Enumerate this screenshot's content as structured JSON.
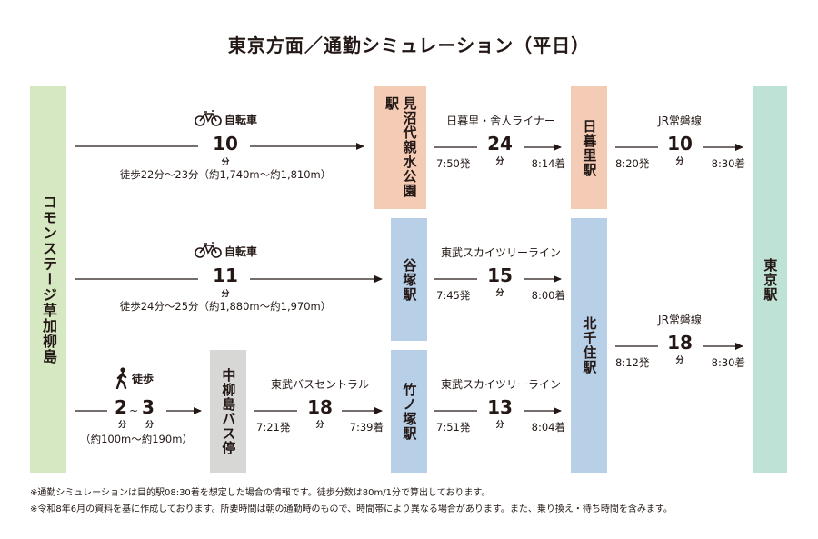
{
  "title": "東京方面／通勤シミュレーション（平日）",
  "stations": {
    "origin": "コモンステージ草加柳島",
    "minumadai": "見沼代親水公園駅",
    "nippori": "日暮里駅",
    "yatsuka": "谷塚駅",
    "kitasenju": "北千住駅",
    "takenotsuka": "竹ノ塚駅",
    "busstop": "中柳島バス停",
    "tokyo": "東京駅"
  },
  "route1": {
    "mode": "自転車",
    "minutes": "10",
    "unit": "分",
    "walk": "徒歩22分〜23分（約1,740m〜約1,810m）",
    "line1": "日暮里・舎人ライナー",
    "line1_min": "24",
    "line1_unit": "分",
    "line1_dep": "7:50発",
    "line1_arr": "8:14着",
    "line2": "JR常磐線",
    "line2_min": "10",
    "line2_unit": "分",
    "line2_dep": "8:20発",
    "line2_arr": "8:30着"
  },
  "route2": {
    "mode": "自転車",
    "minutes": "11",
    "unit": "分",
    "walk": "徒歩24分〜25分（約1,880m〜約1,970m）",
    "line1": "東武スカイツリーライン",
    "line1_min": "15",
    "line1_unit": "分",
    "line1_dep": "7:45発",
    "line1_arr": "8:00着"
  },
  "route3": {
    "mode": "徒歩",
    "min_a": "2",
    "tilde": "~",
    "min_b": "3",
    "unit": "分",
    "dist": "（約100m〜約190m）",
    "bus": "東武バスセントラル",
    "bus_min": "18",
    "bus_unit": "分",
    "bus_dep": "7:21発",
    "bus_arr": "7:39着",
    "line1": "東武スカイツリーライン",
    "line1_min": "13",
    "line1_unit": "分",
    "line1_dep": "7:51発",
    "line1_arr": "8:04着"
  },
  "kitasenju_to_tokyo": {
    "line": "JR常磐線",
    "min": "18",
    "unit": "分",
    "dep": "8:12発",
    "arr": "8:30着"
  },
  "notes": [
    "※通勤シミュレーションは目的駅08:30着を想定した場合の情報です。徒歩分数は80m/1分で算出しております。",
    "※令和8年6月の資料を基に作成しております。所要時間は朝の通勤時のもので、時間帯により異なる場合があります。また、乗り換え・待ち時間を含みます。"
  ],
  "icons": {
    "bicycle": "bicycle-icon",
    "walker": "walker-icon"
  },
  "colors": {
    "origin": "#d6e8c1",
    "tokyo": "#bfe2d6",
    "liner": "#f4cbb4",
    "tobu": "#b7cfe7",
    "bus": "#d7d7d6"
  }
}
